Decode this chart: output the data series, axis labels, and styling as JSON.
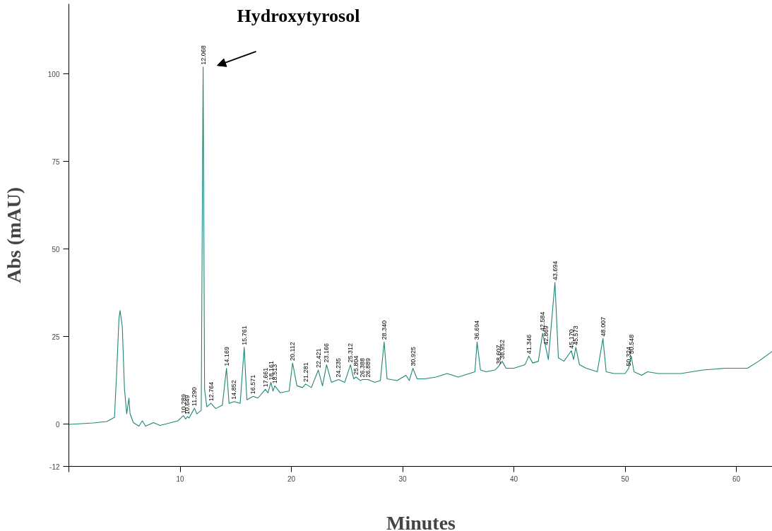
{
  "chart_data": {
    "type": "line",
    "xlabel": "Minutes",
    "ylabel": "Abs (mAU)",
    "xlim": [
      0,
      63.3
    ],
    "ylim": [
      -12,
      120
    ],
    "xticks": [
      {
        "value": 0,
        "label": null
      },
      10,
      20,
      30,
      40,
      50,
      60
    ],
    "yticks": [
      -12,
      0,
      25,
      50,
      75,
      100
    ],
    "grid": false,
    "marker": "none",
    "line_style": "solid",
    "series": [
      {
        "color": "#1f8577",
        "x": [
          0,
          2.2,
          3.4,
          4.1,
          4.3,
          4.5,
          4.6,
          4.8,
          5.0,
          5.2,
          5.4,
          5.5,
          5.8,
          6.3,
          6.6,
          6.9,
          7.6,
          8.2,
          9.8,
          10.289,
          10.5,
          10.649,
          10.8,
          11.29,
          11.5,
          11.9,
          12.068,
          12.2,
          12.4,
          12.764,
          13.2,
          13.8,
          14.169,
          14.4,
          14.852,
          15.4,
          15.761,
          16.0,
          16.571,
          17.0,
          17.661,
          17.9,
          18.161,
          18.35,
          18.513,
          19.0,
          19.8,
          20.112,
          20.5,
          21.0,
          21.281,
          21.8,
          22.421,
          22.8,
          23.166,
          23.6,
          24.235,
          24.8,
          25.312,
          25.6,
          25.804,
          26.2,
          26.388,
          26.889,
          27.5,
          28.0,
          28.34,
          28.6,
          29.5,
          30.3,
          30.6,
          30.925,
          31.3,
          32,
          33,
          34,
          35,
          36,
          36.5,
          36.694,
          37.0,
          37.5,
          38.3,
          38.607,
          38.952,
          39.3,
          40,
          41,
          41.346,
          41.7,
          42.2,
          42.584,
          42.869,
          43.1,
          43.694,
          44.0,
          44.5,
          45.17,
          45.37,
          45.573,
          45.9,
          46.5,
          47.5,
          48.007,
          48.3,
          49,
          50.0,
          50.324,
          50.548,
          50.8,
          51.5,
          52,
          53,
          55,
          57,
          59,
          61,
          62,
          63.3
        ],
        "values": [
          0,
          0.4,
          0.8,
          2,
          15,
          30,
          32.5,
          28,
          10,
          3,
          7.5,
          3,
          0.5,
          -0.5,
          1,
          -0.5,
          0.5,
          -0.3,
          1,
          2.5,
          1.5,
          2.2,
          1.8,
          4.6,
          3,
          4,
          102,
          10,
          5,
          6,
          4.5,
          5.5,
          16,
          6,
          6.5,
          6,
          22,
          7,
          8,
          7.5,
          10,
          9,
          12,
          9.5,
          11,
          9,
          9.5,
          17.5,
          11,
          10.5,
          11.5,
          10.5,
          15.5,
          11,
          17,
          12,
          12.8,
          12,
          17,
          13,
          13.5,
          12.5,
          12.8,
          12.8,
          12,
          12.5,
          23.5,
          13,
          12.5,
          14,
          12.5,
          16,
          13,
          13,
          13.5,
          14.5,
          13.5,
          14.5,
          15,
          23.5,
          15.5,
          15,
          15.5,
          16.5,
          18,
          16,
          16,
          17,
          19.5,
          17.5,
          18,
          26,
          22,
          18.5,
          40.5,
          19,
          18,
          21,
          18.5,
          22,
          17,
          16,
          15,
          24.5,
          15,
          14.5,
          14.5,
          16,
          19.5,
          15,
          14,
          15,
          14.5,
          14.5,
          15.5,
          16,
          16,
          18,
          21
        ]
      }
    ],
    "annotations": [
      {
        "text": "Hydroxytyrosol",
        "x": 12.068,
        "y": 102
      },
      {
        "text": "10.289",
        "x": 10.289,
        "y": 2.5
      },
      {
        "text": "10.649",
        "x": 10.649,
        "y": 2.2
      },
      {
        "text": "11.290",
        "x": 11.29,
        "y": 4.6
      },
      {
        "text": "12.068",
        "x": 12.068,
        "y": 102
      },
      {
        "text": "12.764",
        "x": 12.764,
        "y": 6
      },
      {
        "text": "14.169",
        "x": 14.169,
        "y": 16
      },
      {
        "text": "14.852",
        "x": 14.852,
        "y": 6.5
      },
      {
        "text": "15.761",
        "x": 15.761,
        "y": 22
      },
      {
        "text": "16.571",
        "x": 16.571,
        "y": 8
      },
      {
        "text": "17.661",
        "x": 17.661,
        "y": 10
      },
      {
        "text": "18.161",
        "x": 18.161,
        "y": 12
      },
      {
        "text": "18.513",
        "x": 18.513,
        "y": 11
      },
      {
        "text": "20.112",
        "x": 20.112,
        "y": 17.5
      },
      {
        "text": "21.281",
        "x": 21.281,
        "y": 11.5
      },
      {
        "text": "22.421",
        "x": 22.421,
        "y": 15.5
      },
      {
        "text": "23.166",
        "x": 23.166,
        "y": 17
      },
      {
        "text": "24.235",
        "x": 24.235,
        "y": 12.8
      },
      {
        "text": "25.312",
        "x": 25.312,
        "y": 17
      },
      {
        "text": "25.804",
        "x": 25.804,
        "y": 13.5
      },
      {
        "text": "26.388",
        "x": 26.388,
        "y": 12.8
      },
      {
        "text": "26.889",
        "x": 26.889,
        "y": 12.8
      },
      {
        "text": "28.340",
        "x": 28.34,
        "y": 23.5
      },
      {
        "text": "30.925",
        "x": 30.925,
        "y": 16
      },
      {
        "text": "36.694",
        "x": 36.694,
        "y": 23.5
      },
      {
        "text": "38.607",
        "x": 38.607,
        "y": 16.5
      },
      {
        "text": "38.952",
        "x": 38.952,
        "y": 18
      },
      {
        "text": "41.346",
        "x": 41.346,
        "y": 19.5
      },
      {
        "text": "42.584",
        "x": 42.584,
        "y": 26
      },
      {
        "text": "42.869",
        "x": 42.869,
        "y": 22
      },
      {
        "text": "43.694",
        "x": 43.694,
        "y": 40.5
      },
      {
        "text": "45.170",
        "x": 45.17,
        "y": 21
      },
      {
        "text": "45.573",
        "x": 45.573,
        "y": 22
      },
      {
        "text": "48.007",
        "x": 48.007,
        "y": 24.5
      },
      {
        "text": "50.324",
        "x": 50.324,
        "y": 16
      },
      {
        "text": "50.548",
        "x": 50.548,
        "y": 19.5
      }
    ]
  }
}
